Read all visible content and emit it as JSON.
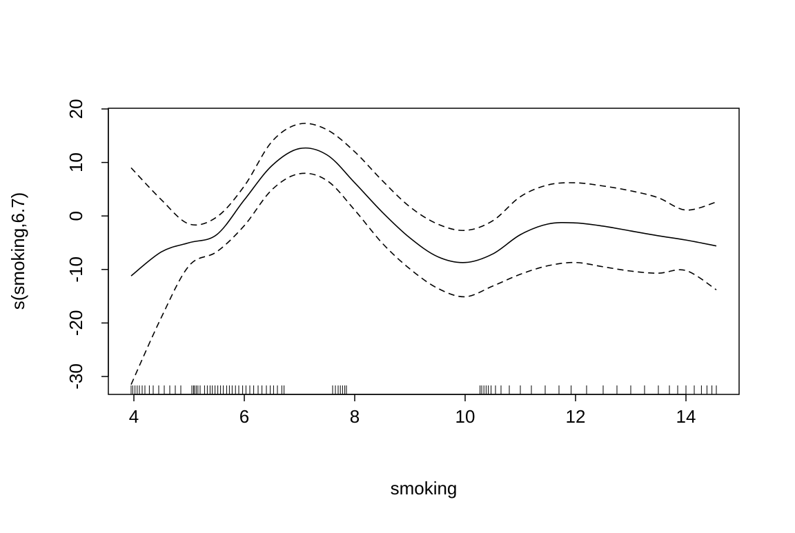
{
  "chart_data": {
    "type": "line",
    "xlabel": "smoking",
    "ylabel": "s(smoking,6.7)",
    "x": [
      3.95,
      4.5,
      5,
      5.5,
      6,
      6.5,
      7,
      7.5,
      8,
      8.5,
      9,
      9.5,
      10,
      10.5,
      11,
      11.5,
      12,
      12.5,
      13,
      13.5,
      14,
      14.55
    ],
    "series": [
      {
        "color": "#000000",
        "linestyle": "solid",
        "values": [
          -11.2,
          -6.7,
          -5.0,
          -3.5,
          3.0,
          9.4,
          12.6,
          11.4,
          6.2,
          0.7,
          -4.1,
          -7.6,
          -8.7,
          -7.1,
          -3.5,
          -1.5,
          -1.3,
          -1.9,
          -2.8,
          -3.7,
          -4.5,
          -5.6
        ]
      },
      {
        "color": "#000000",
        "linestyle": "dashed",
        "values": [
          9.0,
          3.0,
          -1.5,
          -0.2,
          5.6,
          13.9,
          17.2,
          16.1,
          12.0,
          6.6,
          1.7,
          -1.5,
          -2.7,
          -0.9,
          3.6,
          5.8,
          6.2,
          5.6,
          4.7,
          3.4,
          1.1,
          2.6
        ]
      },
      {
        "color": "#000000",
        "linestyle": "dashed",
        "values": [
          -31.5,
          -18.9,
          -9.3,
          -6.7,
          -1.8,
          4.9,
          7.9,
          6.6,
          1.1,
          -5.1,
          -9.9,
          -13.5,
          -15.1,
          -13.1,
          -10.9,
          -9.3,
          -8.7,
          -9.5,
          -10.3,
          -10.7,
          -10.2,
          -13.8
        ]
      }
    ],
    "rug": [
      3.95,
      3.98,
      4.02,
      4.06,
      4.1,
      4.15,
      4.2,
      4.28,
      4.35,
      4.45,
      4.55,
      4.65,
      4.75,
      4.85,
      5.05,
      5.08,
      5.1,
      5.13,
      5.16,
      5.2,
      5.28,
      5.33,
      5.38,
      5.42,
      5.47,
      5.52,
      5.57,
      5.62,
      5.68,
      5.73,
      5.78,
      5.84,
      5.9,
      5.97,
      6.03,
      6.1,
      6.17,
      6.25,
      6.32,
      6.4,
      6.47,
      6.53,
      6.6,
      6.68,
      6.72,
      7.6,
      7.65,
      7.7,
      7.74,
      7.78,
      7.82,
      7.85,
      10.27,
      10.3,
      10.34,
      10.38,
      10.42,
      10.47,
      10.55,
      10.65,
      10.8,
      11.0,
      11.2,
      11.45,
      11.7,
      11.92,
      12.2,
      12.5,
      12.75,
      13.0,
      13.25,
      13.5,
      13.7,
      13.85,
      14.0,
      14.15,
      14.28,
      14.38,
      14.47,
      14.55
    ],
    "xlim": [
      3.5375,
      14.9625
    ],
    "ylim": [
      -33.35,
      20.13
    ],
    "xticks": [
      4,
      6,
      8,
      10,
      12,
      14
    ],
    "yticks": [
      -30,
      -20,
      -10,
      0,
      10,
      20
    ]
  }
}
